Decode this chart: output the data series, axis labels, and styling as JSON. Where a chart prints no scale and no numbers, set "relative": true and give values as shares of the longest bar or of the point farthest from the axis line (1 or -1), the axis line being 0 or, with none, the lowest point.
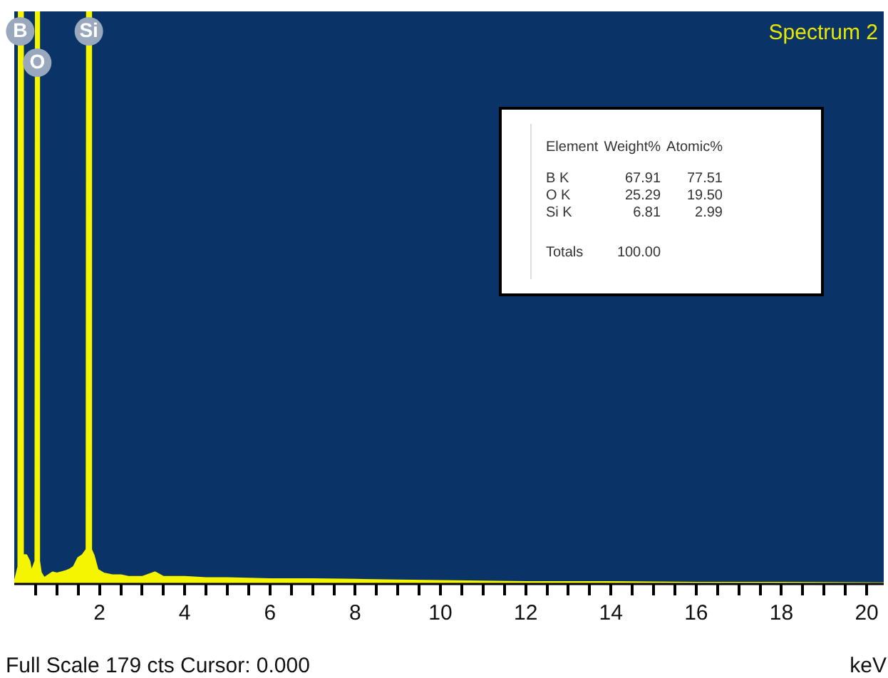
{
  "chart_data": {
    "type": "area",
    "title": "Spectrum 2",
    "xlabel": "keV",
    "relative": true,
    "grid": false,
    "legend": false,
    "xlim": [
      0,
      20.4
    ],
    "xticks": [
      {
        "value": 0.5,
        "label": null
      },
      {
        "value": 1,
        "label": null
      },
      {
        "value": 1.5,
        "label": null
      },
      2,
      {
        "value": 2.5,
        "label": null
      },
      {
        "value": 3,
        "label": null
      },
      {
        "value": 3.5,
        "label": null
      },
      4,
      {
        "value": 4.5,
        "label": null
      },
      {
        "value": 5,
        "label": null
      },
      {
        "value": 5.5,
        "label": null
      },
      6,
      {
        "value": 6.5,
        "label": null
      },
      {
        "value": 7,
        "label": null
      },
      {
        "value": 7.5,
        "label": null
      },
      8,
      {
        "value": 8.5,
        "label": null
      },
      {
        "value": 9,
        "label": null
      },
      {
        "value": 9.5,
        "label": null
      },
      10,
      {
        "value": 10.5,
        "label": null
      },
      {
        "value": 11,
        "label": null
      },
      {
        "value": 11.5,
        "label": null
      },
      12,
      {
        "value": 12.5,
        "label": null
      },
      {
        "value": 13,
        "label": null
      },
      {
        "value": 13.5,
        "label": null
      },
      14,
      {
        "value": 14.5,
        "label": null
      },
      {
        "value": 15,
        "label": null
      },
      {
        "value": 15.5,
        "label": null
      },
      16,
      {
        "value": 16.5,
        "label": null
      },
      {
        "value": 17,
        "label": null
      },
      {
        "value": 17.5,
        "label": null
      },
      18,
      {
        "value": 18.5,
        "label": null
      },
      {
        "value": 19,
        "label": null
      },
      {
        "value": 19.5,
        "label": null
      },
      20
    ],
    "x": [
      0,
      0.1,
      0.11,
      0.17,
      0.2,
      0.28,
      0.35,
      0.4,
      0.5,
      0.51,
      0.57,
      0.58,
      0.62,
      0.7,
      0.8,
      0.9,
      1.0,
      1.1,
      1.2,
      1.3,
      1.4,
      1.5,
      1.6,
      1.7,
      1.71,
      1.79,
      1.8,
      1.86,
      1.95,
      2.1,
      2.3,
      2.5,
      2.7,
      3.0,
      3.3,
      3.5,
      4,
      4.5,
      5,
      5.5,
      6,
      7,
      8,
      9,
      10,
      11,
      12,
      14,
      16,
      18,
      20.4
    ],
    "series": [
      {
        "color": "#f5f500",
        "values": [
          0,
          0.03,
          1,
          1,
          0.05,
          0.05,
          0.04,
          0.02,
          0.04,
          1,
          1,
          0.04,
          0.02,
          0.01,
          0.015,
          0.02,
          0.018,
          0.02,
          0.022,
          0.025,
          0.03,
          0.045,
          0.05,
          0.06,
          1,
          1,
          0.06,
          0.05,
          0.025,
          0.018,
          0.015,
          0.015,
          0.012,
          0.012,
          0.02,
          0.012,
          0.012,
          0.01,
          0.01,
          0.009,
          0.008,
          0.008,
          0.007,
          0.006,
          0.005,
          0.004,
          0.003,
          0.003,
          0.002,
          0.002,
          0.001
        ]
      }
    ],
    "annotations": [
      {
        "text": "B",
        "x": 0.14,
        "y": 1
      },
      {
        "text": "O",
        "x": 0.54,
        "y": 1
      },
      {
        "text": "Si",
        "x": 1.75,
        "y": 1
      },
      "Element\tWeight%\tAtomic%",
      "B K\t67.91\t77.51",
      "O K\t25.29\t19.50",
      "Si K\t6.81\t2.99",
      "Totals\t100.00",
      "Full Scale 179 cts Cursor: 0.000"
    ]
  }
}
